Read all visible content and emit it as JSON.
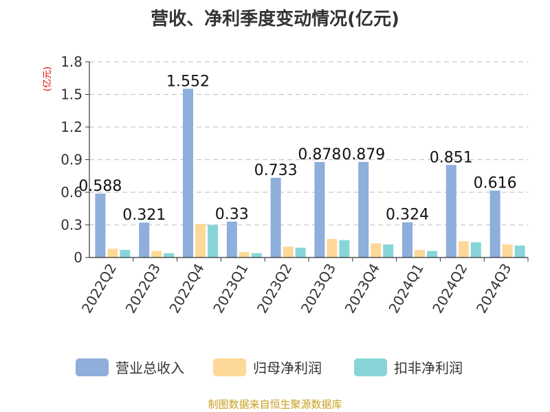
{
  "chart_data": {
    "type": "bar",
    "title": "营收、净利季度变动情况(亿元)",
    "ylabel": "(亿元)",
    "xlabel": "",
    "ylim": [
      0,
      1.8
    ],
    "yticks": [
      "0",
      "0.3",
      "0.6",
      "0.9",
      "1.2",
      "1.5",
      "1.8"
    ],
    "grid": true,
    "legend_position": "bottom",
    "categories": [
      "2022Q2",
      "2022Q3",
      "2022Q4",
      "2023Q1",
      "2023Q2",
      "2023Q3",
      "2023Q4",
      "2024Q1",
      "2024Q2",
      "2024Q3"
    ],
    "series": [
      {
        "name": "营业总收入",
        "color": "#8eaedb",
        "values": [
          0.588,
          0.321,
          1.552,
          0.33,
          0.733,
          0.878,
          0.879,
          0.324,
          0.851,
          0.616
        ],
        "labels": [
          "0.588",
          "0.321",
          "1.552",
          "0.33",
          "0.733",
          "0.878",
          "0.879",
          "0.324",
          "0.851",
          "0.616"
        ]
      },
      {
        "name": "归母净利润",
        "color": "#fdd898",
        "values": [
          0.08,
          0.06,
          0.31,
          0.05,
          0.1,
          0.17,
          0.13,
          0.07,
          0.15,
          0.12
        ]
      },
      {
        "name": "扣非净利润",
        "color": "#88d5d9",
        "values": [
          0.07,
          0.04,
          0.3,
          0.04,
          0.09,
          0.16,
          0.12,
          0.06,
          0.14,
          0.11
        ]
      }
    ]
  },
  "footer": {
    "source": "制图数据来自恒生聚源数据库"
  }
}
